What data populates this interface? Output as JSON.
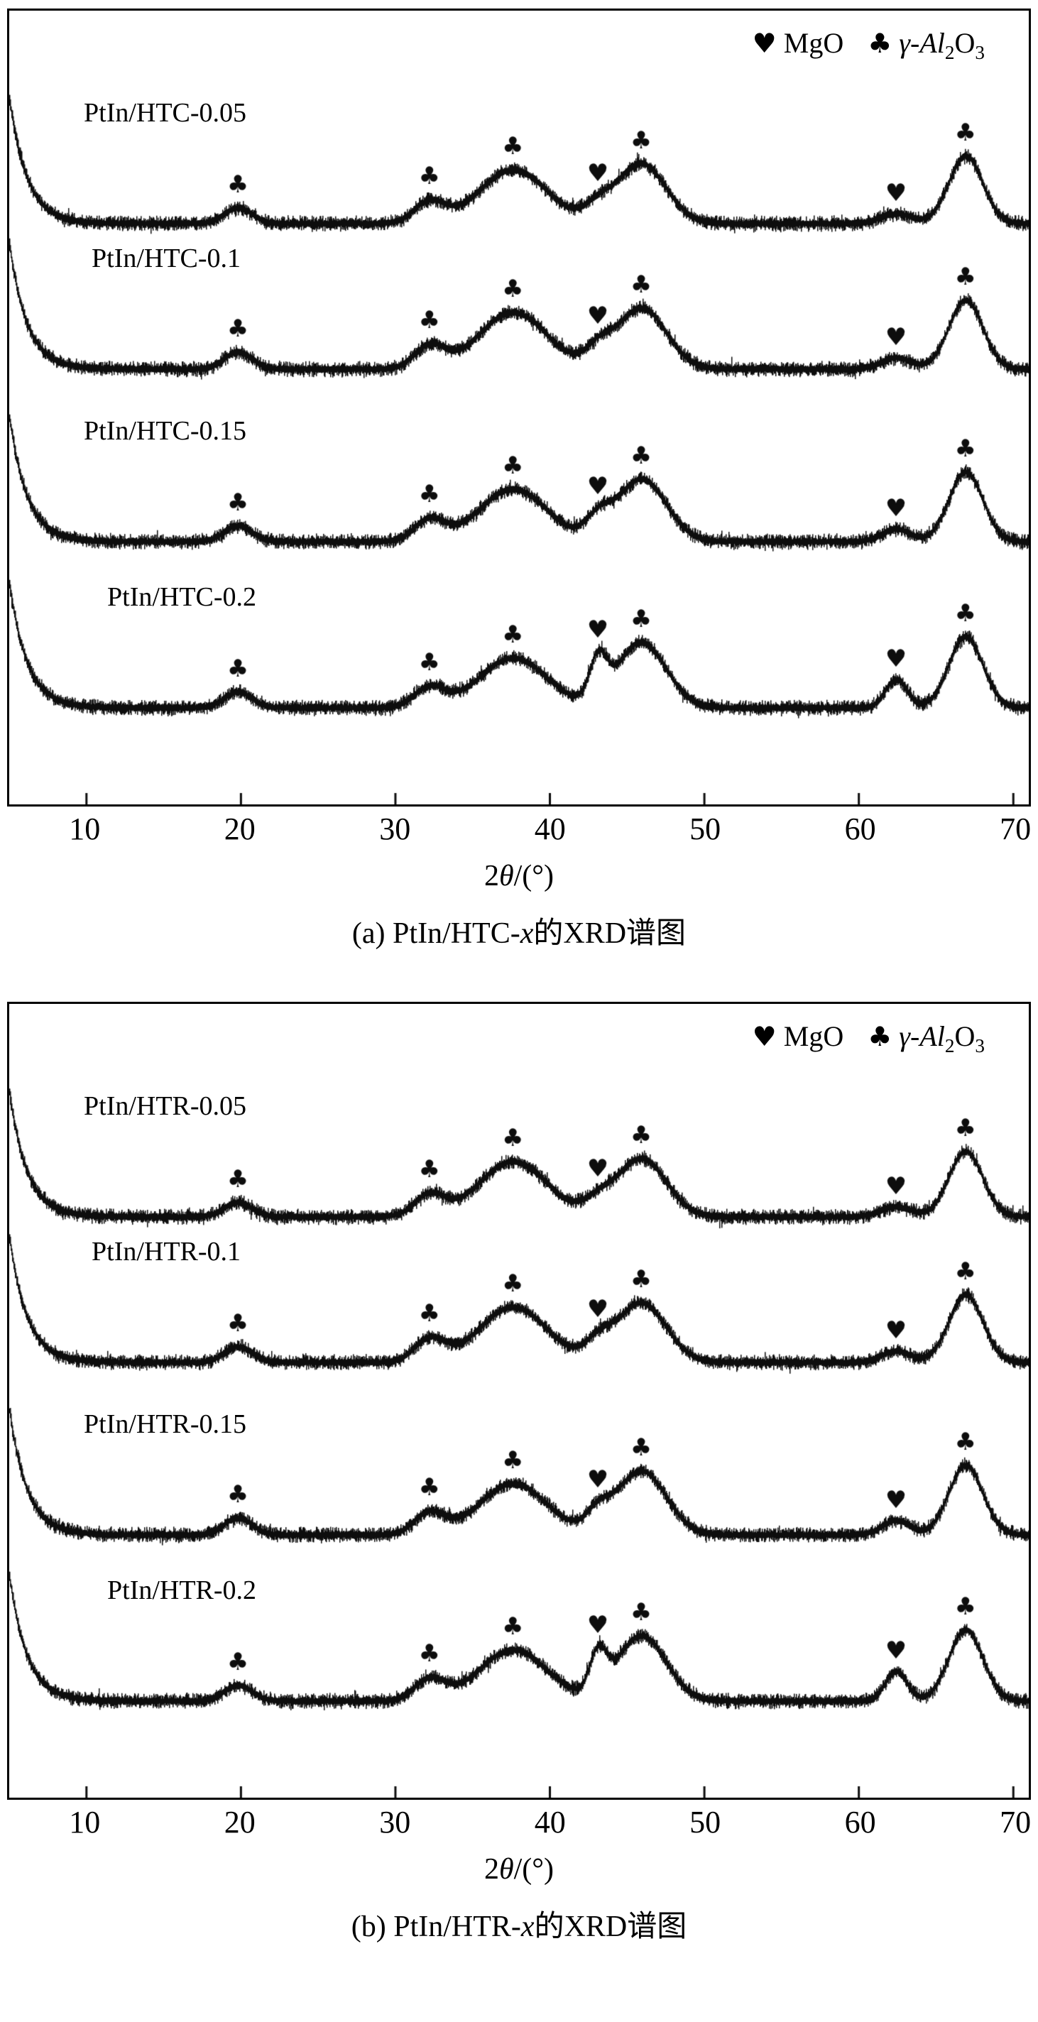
{
  "figure": {
    "legend": {
      "heart_symbol": "♥",
      "mgo_label": "MgO",
      "club_symbol": "♣",
      "al2o3_prefix": "γ-Al",
      "al2o3_sub1": "2",
      "al2o3_mid": "O",
      "al2o3_sub2": "3"
    },
    "x_axis_label": {
      "prefix": "2",
      "theta": "θ",
      "suffix": "/(°)"
    },
    "captions": {
      "a": {
        "prefix": "(a) PtIn/HTC-",
        "variable": "x",
        "suffix": "的XRD谱图"
      },
      "b": {
        "prefix": "(b) PtIn/HTR-",
        "variable": "x",
        "suffix": "的XRD谱图"
      }
    }
  },
  "chart_data": [
    {
      "type": "line",
      "panel": "a",
      "title": "(a) PtIn/HTC-x的XRD谱图",
      "xlabel": "2θ/(°)",
      "x_range": [
        5,
        71
      ],
      "x_ticks": [
        10,
        20,
        30,
        40,
        50,
        60,
        70
      ],
      "grid": false,
      "legend_position": "top-right",
      "legend": [
        {
          "symbol": "♥",
          "label": "MgO"
        },
        {
          "symbol": "♣",
          "label": "γ-Al2O3"
        }
      ],
      "phases": {
        "mgo": {
          "name": "MgO",
          "symbol": "♥",
          "peak_positions": [
            43.1,
            62.4
          ]
        },
        "al2o3": {
          "name": "γ-Al2O3",
          "symbol": "♣",
          "peak_positions": [
            19.8,
            32.2,
            37.6,
            45.9,
            66.9
          ],
          "peak_widths": [
            0.9,
            1.0,
            2.2,
            1.6,
            1.1
          ]
        }
      },
      "series": [
        {
          "name": "PtIn/HTC-0.05",
          "al2o3_peak_heights": [
            22,
            30,
            76,
            84,
            95
          ],
          "mgo_peak_heights": [
            20,
            14
          ],
          "mgo_peak_widths": [
            0.9,
            1.0
          ]
        },
        {
          "name": "PtIn/HTC-0.1",
          "al2o3_peak_heights": [
            24,
            32,
            80,
            86,
            97
          ],
          "mgo_peak_heights": [
            24,
            16
          ],
          "mgo_peak_widths": [
            0.85,
            0.95
          ]
        },
        {
          "name": "PtIn/HTC-0.15",
          "al2o3_peak_heights": [
            22,
            30,
            74,
            88,
            98
          ],
          "mgo_peak_heights": [
            27,
            18
          ],
          "mgo_peak_widths": [
            0.8,
            0.9
          ]
        },
        {
          "name": "PtIn/HTC-0.2",
          "al2o3_peak_heights": [
            22,
            28,
            70,
            92,
            100
          ],
          "mgo_peak_heights": [
            58,
            40
          ],
          "mgo_peak_widths": [
            0.55,
            0.7
          ]
        }
      ]
    },
    {
      "type": "line",
      "panel": "b",
      "title": "(b) PtIn/HTR-x的XRD谱图",
      "xlabel": "2θ/(°)",
      "x_range": [
        5,
        71
      ],
      "x_ticks": [
        10,
        20,
        30,
        40,
        50,
        60,
        70
      ],
      "grid": false,
      "legend_position": "top-right",
      "legend": [
        {
          "symbol": "♥",
          "label": "MgO"
        },
        {
          "symbol": "♣",
          "label": "γ-Al2O3"
        }
      ],
      "phases": {
        "mgo": {
          "name": "MgO",
          "symbol": "♥",
          "peak_positions": [
            43.1,
            62.4
          ]
        },
        "al2o3": {
          "name": "γ-Al2O3",
          "symbol": "♣",
          "peak_positions": [
            19.8,
            32.2,
            37.6,
            45.9,
            66.9
          ],
          "peak_widths": [
            0.9,
            1.0,
            2.2,
            1.6,
            1.1
          ]
        }
      },
      "series": [
        {
          "name": "PtIn/HTR-0.05",
          "al2o3_peak_heights": [
            20,
            30,
            78,
            82,
            92
          ],
          "mgo_peak_heights": [
            18,
            14
          ],
          "mgo_peak_widths": [
            0.9,
            1.0
          ]
        },
        {
          "name": "PtIn/HTR-0.1",
          "al2o3_peak_heights": [
            22,
            32,
            78,
            84,
            95
          ],
          "mgo_peak_heights": [
            24,
            16
          ],
          "mgo_peak_widths": [
            0.85,
            0.95
          ]
        },
        {
          "name": "PtIn/HTR-0.15",
          "al2o3_peak_heights": [
            24,
            30,
            72,
            90,
            98
          ],
          "mgo_peak_heights": [
            26,
            20
          ],
          "mgo_peak_widths": [
            0.8,
            0.9
          ]
        },
        {
          "name": "PtIn/HTR-0.2",
          "al2o3_peak_heights": [
            22,
            30,
            72,
            92,
            100
          ],
          "mgo_peak_heights": [
            55,
            42
          ],
          "mgo_peak_widths": [
            0.55,
            0.7
          ]
        }
      ]
    }
  ]
}
